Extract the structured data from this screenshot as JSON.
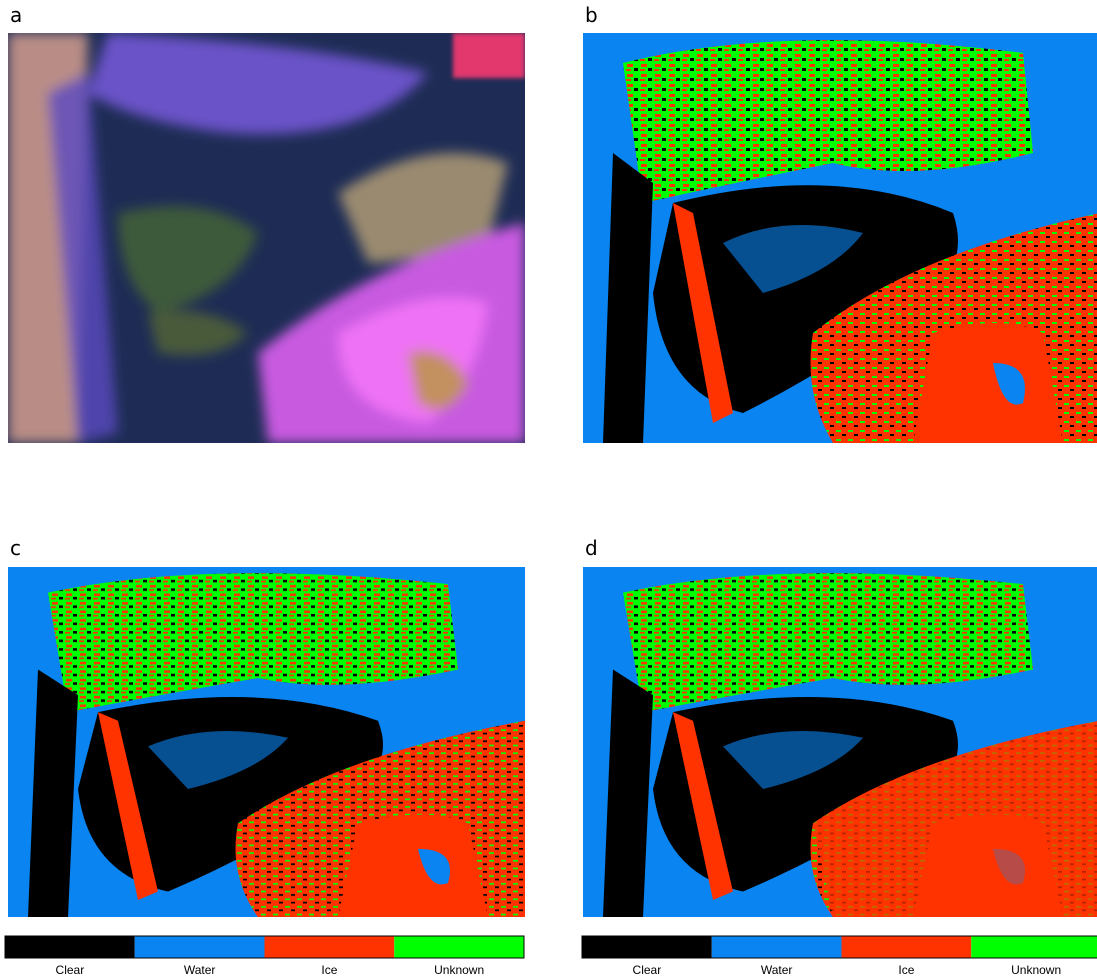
{
  "panels": [
    {
      "label": "a"
    },
    {
      "label": "b"
    },
    {
      "label": "c"
    },
    {
      "label": "d"
    }
  ],
  "legends": [
    {
      "items": [
        "Clear",
        "Water",
        "Ice",
        "Unknown"
      ]
    },
    {
      "items": [
        "Clear",
        "Water",
        "Ice",
        "Unknown"
      ]
    }
  ]
}
